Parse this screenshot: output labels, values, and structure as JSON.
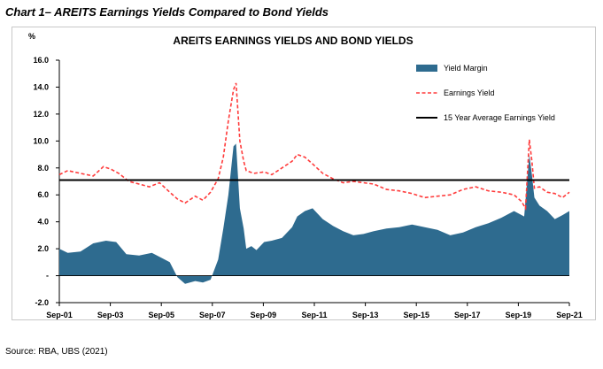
{
  "heading": "Chart 1– AREITS Earnings Yields Compared to Bond Yields",
  "source": "Source: RBA, UBS (2021)",
  "chart_data": {
    "type": "area",
    "title": "AREITS EARNINGS YIELDS AND BOND YIELDS",
    "ylabel": "%",
    "xlabel": "",
    "ylim": [
      -2,
      16
    ],
    "yticks": [
      "16.0",
      "14.0",
      "12.0",
      "10.0",
      "8.0",
      "6.0",
      "4.0",
      "2.0",
      "-",
      "-2.0"
    ],
    "xlim": [
      2001.67,
      2021.67
    ],
    "xticks": [
      "Sep-01",
      "Sep-03",
      "Sep-05",
      "Sep-07",
      "Sep-09",
      "Sep-11",
      "Sep-13",
      "Sep-15",
      "Sep-17",
      "Sep-19",
      "Sep-21"
    ],
    "legend_position": "top-right",
    "grid": false,
    "series": [
      {
        "name": "Yield Margin",
        "kind": "area",
        "color": "#2e6b8f",
        "x": [
          2001.67,
          2002.0,
          2002.5,
          2003.0,
          2003.5,
          2003.9,
          2004.3,
          2004.8,
          2005.3,
          2005.7,
          2006.0,
          2006.3,
          2006.6,
          2007.0,
          2007.3,
          2007.6,
          2007.9,
          2008.1,
          2008.3,
          2008.5,
          2008.6,
          2008.75,
          2008.9,
          2009.0,
          2009.2,
          2009.4,
          2009.7,
          2010.0,
          2010.4,
          2010.8,
          2011.0,
          2011.3,
          2011.6,
          2012.0,
          2012.4,
          2012.8,
          2013.2,
          2013.6,
          2014.0,
          2014.5,
          2015.0,
          2015.5,
          2016.0,
          2016.5,
          2017.0,
          2017.5,
          2018.0,
          2018.5,
          2019.0,
          2019.5,
          2019.9,
          2020.1,
          2020.2,
          2020.3,
          2020.5,
          2020.8,
          2021.1,
          2021.4,
          2021.67
        ],
        "values": [
          2.0,
          1.7,
          1.8,
          2.4,
          2.6,
          2.5,
          1.6,
          1.5,
          1.7,
          1.3,
          1.0,
          -0.1,
          -0.6,
          -0.4,
          -0.5,
          -0.3,
          1.2,
          3.5,
          6.0,
          9.6,
          9.8,
          5.0,
          3.5,
          2.0,
          2.2,
          1.9,
          2.5,
          2.6,
          2.8,
          3.6,
          4.4,
          4.8,
          5.0,
          4.2,
          3.7,
          3.3,
          3.0,
          3.1,
          3.3,
          3.5,
          3.6,
          3.8,
          3.6,
          3.4,
          3.0,
          3.2,
          3.6,
          3.9,
          4.3,
          4.8,
          4.4,
          9.0,
          7.5,
          5.8,
          5.2,
          4.8,
          4.2,
          4.5,
          4.8
        ]
      },
      {
        "name": "Earnings Yield",
        "kind": "dashed-line",
        "color": "#ff3b3b",
        "x": [
          2001.67,
          2002.0,
          2002.5,
          2003.0,
          2003.4,
          2003.7,
          2004.0,
          2004.4,
          2004.8,
          2005.2,
          2005.6,
          2006.0,
          2006.3,
          2006.6,
          2007.0,
          2007.3,
          2007.6,
          2007.9,
          2008.1,
          2008.3,
          2008.5,
          2008.6,
          2008.75,
          2008.9,
          2009.0,
          2009.3,
          2009.7,
          2010.0,
          2010.4,
          2010.8,
          2011.0,
          2011.3,
          2011.6,
          2012.0,
          2012.4,
          2012.8,
          2013.2,
          2013.6,
          2014.0,
          2014.5,
          2015.0,
          2015.5,
          2016.0,
          2016.5,
          2017.0,
          2017.5,
          2018.0,
          2018.5,
          2019.0,
          2019.5,
          2019.8,
          2019.95,
          2020.1,
          2020.2,
          2020.3,
          2020.5,
          2020.8,
          2021.1,
          2021.4,
          2021.67
        ],
        "values": [
          7.5,
          7.8,
          7.6,
          7.4,
          8.1,
          7.9,
          7.6,
          7.0,
          6.8,
          6.6,
          6.9,
          6.2,
          5.7,
          5.4,
          5.9,
          5.6,
          6.2,
          7.2,
          8.8,
          11.5,
          13.8,
          14.3,
          10.0,
          8.5,
          7.8,
          7.6,
          7.7,
          7.5,
          8.0,
          8.5,
          9.0,
          8.8,
          8.3,
          7.6,
          7.2,
          6.9,
          7.0,
          6.9,
          6.8,
          6.4,
          6.3,
          6.1,
          5.8,
          5.9,
          6.0,
          6.4,
          6.6,
          6.3,
          6.2,
          6.0,
          5.5,
          5.0,
          10.1,
          8.5,
          6.5,
          6.6,
          6.2,
          6.1,
          5.8,
          6.2
        ]
      },
      {
        "name": "15 Year Average Earnings Yield",
        "kind": "line",
        "color": "#000000",
        "x": [
          2001.67,
          2021.67
        ],
        "values": [
          7.1,
          7.1
        ]
      }
    ]
  }
}
